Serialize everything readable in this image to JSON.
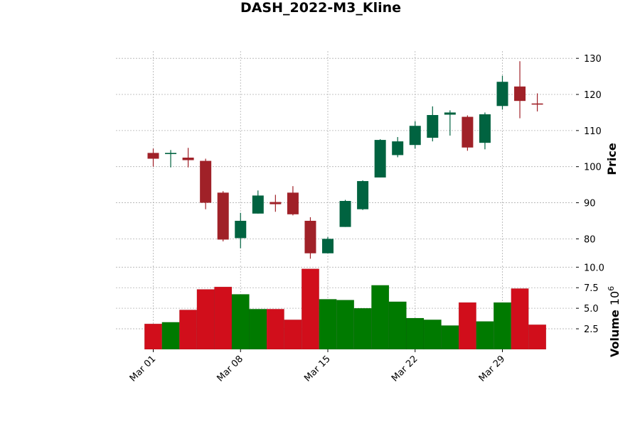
{
  "chart_data": {
    "type": "candlestick",
    "title": "DASH_2022-M3_Kline",
    "ylabel": "Price",
    "volume_label": "Volume",
    "volume_exponent": "10",
    "volume_exponent_power": "6",
    "xtick_labels": [
      {
        "date": "2022-03-01",
        "label": "Mar 01"
      },
      {
        "date": "2022-03-08",
        "label": "Mar 08"
      },
      {
        "date": "2022-03-15",
        "label": "Mar 15"
      },
      {
        "date": "2022-03-22",
        "label": "Mar 22"
      },
      {
        "date": "2022-03-29",
        "label": "Mar 29"
      }
    ],
    "price_ylim": [
      73,
      132
    ],
    "price_yticks": [
      80,
      90,
      100,
      110,
      120,
      130
    ],
    "volume_ylim": [
      0,
      10.2
    ],
    "volume_yticks": [
      2.5,
      5.0,
      7.5,
      10.0
    ],
    "volume_ytick_labels": [
      "2.5",
      "5.0",
      "7.5",
      "10.0"
    ],
    "colors": {
      "up_candle": "#006340",
      "down_candle": "#a02128",
      "up_volume": "#007a00",
      "down_volume": "#d10e1b",
      "grid": "#b0b0b0"
    },
    "candles": [
      {
        "date": "2022-03-01",
        "open": 103.8,
        "high": 105.0,
        "low": 100.0,
        "close": 102.2
      },
      {
        "date": "2022-03-02",
        "open": 103.5,
        "high": 104.6,
        "low": 99.8,
        "close": 103.8
      },
      {
        "date": "2022-03-03",
        "open": 102.5,
        "high": 105.2,
        "low": 99.8,
        "close": 101.8
      },
      {
        "date": "2022-03-04",
        "open": 101.6,
        "high": 102.2,
        "low": 88.2,
        "close": 90.0
      },
      {
        "date": "2022-03-07",
        "open": 92.8,
        "high": 93.2,
        "low": 79.3,
        "close": 79.8
      },
      {
        "date": "2022-03-08",
        "open": 80.2,
        "high": 87.2,
        "low": 77.4,
        "close": 85.0
      },
      {
        "date": "2022-03-09",
        "open": 87.0,
        "high": 93.4,
        "low": 87.0,
        "close": 92.0
      },
      {
        "date": "2022-03-10",
        "open": 90.2,
        "high": 92.2,
        "low": 87.5,
        "close": 89.6
      },
      {
        "date": "2022-03-11",
        "open": 92.8,
        "high": 94.6,
        "low": 86.5,
        "close": 86.8
      },
      {
        "date": "2022-03-14",
        "open": 85.0,
        "high": 86.0,
        "low": 74.5,
        "close": 76.0
      },
      {
        "date": "2022-03-15",
        "open": 76.0,
        "high": 80.5,
        "low": 76.0,
        "close": 80.0
      },
      {
        "date": "2022-03-16",
        "open": 83.3,
        "high": 90.8,
        "low": 83.3,
        "close": 90.5
      },
      {
        "date": "2022-03-17",
        "open": 88.2,
        "high": 96.2,
        "low": 88.0,
        "close": 96.0
      },
      {
        "date": "2022-03-18",
        "open": 97.0,
        "high": 107.6,
        "low": 97.0,
        "close": 107.4
      },
      {
        "date": "2022-03-21",
        "open": 103.2,
        "high": 108.2,
        "low": 102.6,
        "close": 107.0
      },
      {
        "date": "2022-03-22",
        "open": 106.0,
        "high": 112.6,
        "low": 105.0,
        "close": 111.3
      },
      {
        "date": "2022-03-23",
        "open": 108.0,
        "high": 116.7,
        "low": 107.0,
        "close": 114.3
      },
      {
        "date": "2022-03-24",
        "open": 114.4,
        "high": 115.6,
        "low": 108.6,
        "close": 115.0
      },
      {
        "date": "2022-03-25",
        "open": 113.8,
        "high": 114.2,
        "low": 104.4,
        "close": 105.3
      },
      {
        "date": "2022-03-28",
        "open": 106.6,
        "high": 115.0,
        "low": 104.8,
        "close": 114.5
      },
      {
        "date": "2022-03-29",
        "open": 116.8,
        "high": 125.2,
        "low": 115.8,
        "close": 123.5
      },
      {
        "date": "2022-03-30",
        "open": 122.2,
        "high": 129.2,
        "low": 113.4,
        "close": 118.2
      },
      {
        "date": "2022-03-31",
        "open": 117.5,
        "high": 120.3,
        "low": 115.3,
        "close": 117.2
      }
    ],
    "volume": [
      3.1,
      3.3,
      4.8,
      7.3,
      7.6,
      6.7,
      4.9,
      4.9,
      3.6,
      9.8,
      6.1,
      6.0,
      5.0,
      7.8,
      5.8,
      3.8,
      3.6,
      2.9,
      5.7,
      3.4,
      5.7,
      7.4,
      3.0
    ],
    "grid": true
  }
}
